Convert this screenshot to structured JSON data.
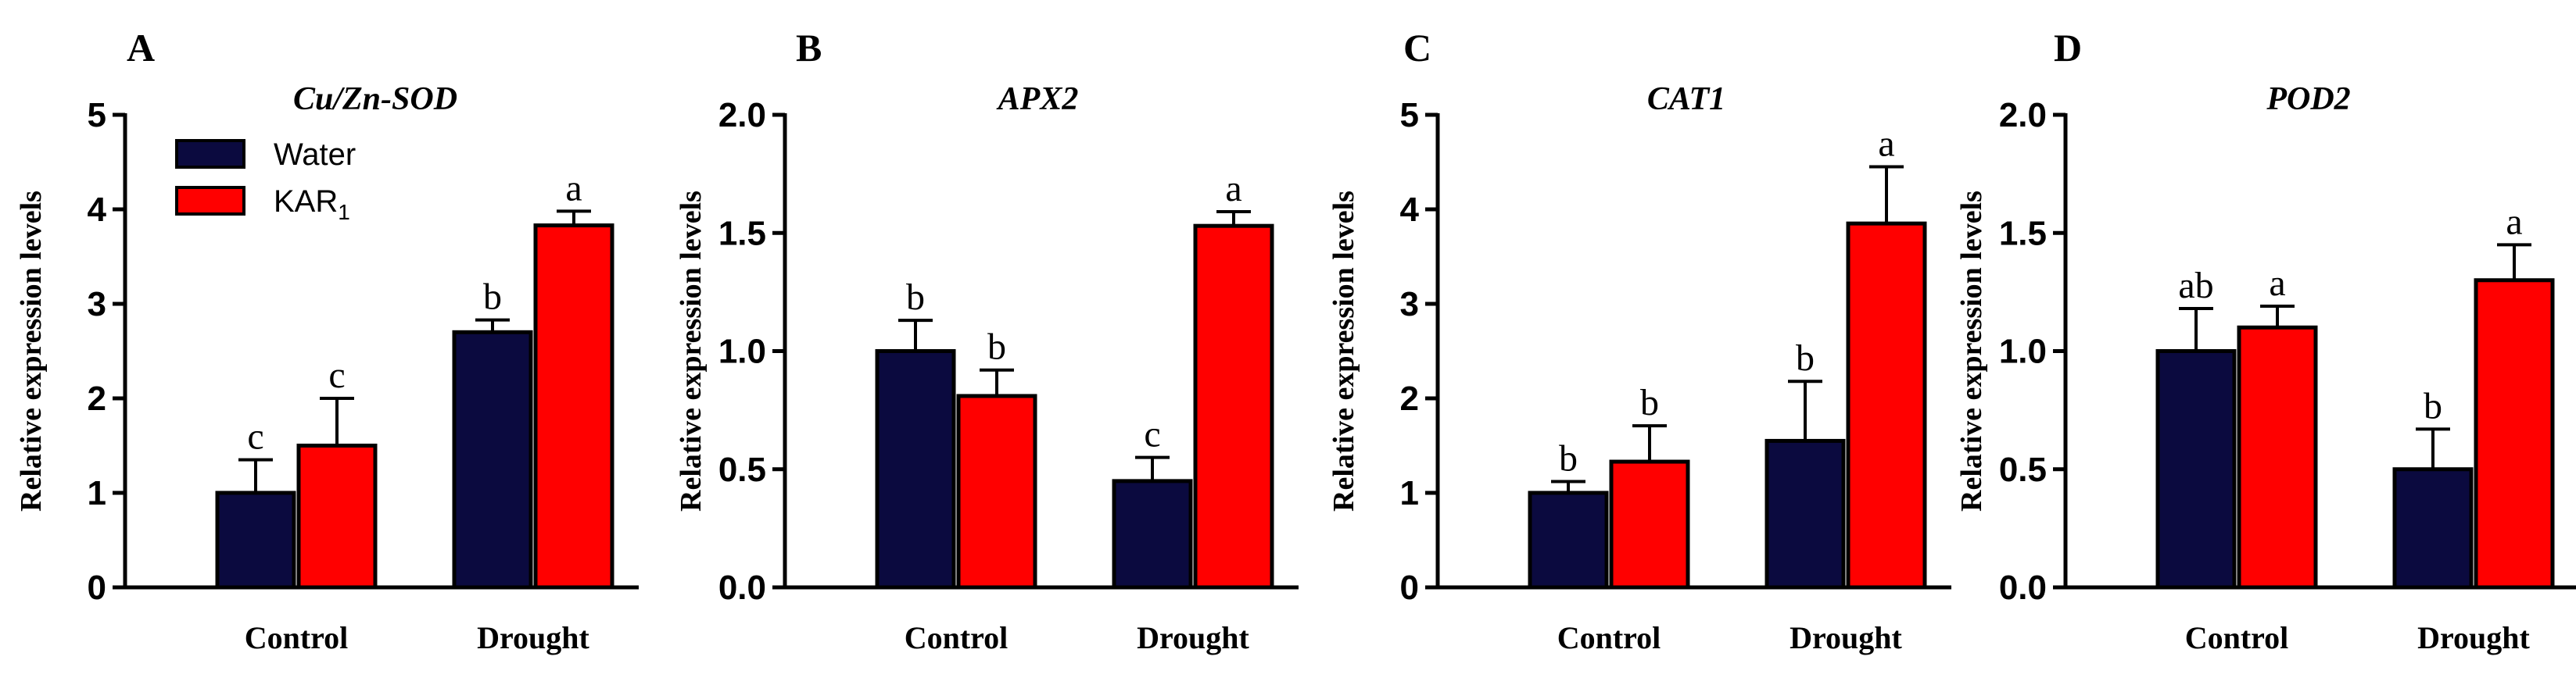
{
  "figure": {
    "legend": [
      {
        "name": "Water",
        "color": "#0b0a3f"
      },
      {
        "name": "KAR",
        "subscript": "1",
        "color": "#ff0000"
      }
    ]
  },
  "chart_data": [
    {
      "type": "bar",
      "panel": "A",
      "title": "Cu/Zn-SOD",
      "ylabel": "Relative expression levels",
      "xlabel": "",
      "categories": [
        "Control",
        "Drought"
      ],
      "ylim": [
        0,
        5
      ],
      "yticks": [
        "0",
        "1",
        "2",
        "3",
        "4",
        "5"
      ],
      "series": [
        {
          "name": "Water",
          "values": [
            1.0,
            2.7
          ],
          "errors": [
            0.35,
            0.13
          ],
          "letters": [
            "c",
            "b"
          ]
        },
        {
          "name": "KAR1",
          "values": [
            1.5,
            3.83
          ],
          "errors": [
            0.5,
            0.15
          ],
          "letters": [
            "c",
            "a"
          ]
        }
      ]
    },
    {
      "type": "bar",
      "panel": "B",
      "title": "APX2",
      "ylabel": "Relative expression levels",
      "xlabel": "",
      "categories": [
        "Control",
        "Drought"
      ],
      "ylim": [
        0,
        2.0
      ],
      "yticks": [
        "0.0",
        "0.5",
        "1.0",
        "1.5",
        "2.0"
      ],
      "series": [
        {
          "name": "Water",
          "values": [
            1.0,
            0.45
          ],
          "errors": [
            0.13,
            0.1
          ],
          "letters": [
            "b",
            "c"
          ]
        },
        {
          "name": "KAR1",
          "values": [
            0.81,
            1.53
          ],
          "errors": [
            0.11,
            0.06
          ],
          "letters": [
            "b",
            "a"
          ]
        }
      ]
    },
    {
      "type": "bar",
      "panel": "C",
      "title": "CAT1",
      "ylabel": "Relative expression levels",
      "xlabel": "",
      "categories": [
        "Control",
        "Drought"
      ],
      "ylim": [
        0,
        5
      ],
      "yticks": [
        "0",
        "1",
        "2",
        "3",
        "4",
        "5"
      ],
      "series": [
        {
          "name": "Water",
          "values": [
            1.0,
            1.55
          ],
          "errors": [
            0.12,
            0.63
          ],
          "letters": [
            "b",
            "b"
          ]
        },
        {
          "name": "KAR1",
          "values": [
            1.33,
            3.85
          ],
          "errors": [
            0.38,
            0.6
          ],
          "letters": [
            "b",
            "a"
          ]
        }
      ]
    },
    {
      "type": "bar",
      "panel": "D",
      "title": "POD2",
      "ylabel": "Relative expression levels",
      "xlabel": "",
      "categories": [
        "Control",
        "Drought"
      ],
      "ylim": [
        0,
        2.0
      ],
      "yticks": [
        "0.0",
        "0.5",
        "1.0",
        "1.5",
        "2.0"
      ],
      "series": [
        {
          "name": "Water",
          "values": [
            1.0,
            0.5
          ],
          "errors": [
            0.18,
            0.17
          ],
          "letters": [
            "ab",
            "b"
          ]
        },
        {
          "name": "KAR1",
          "values": [
            1.1,
            1.3
          ],
          "errors": [
            0.09,
            0.15
          ],
          "letters": [
            "a",
            "a"
          ]
        }
      ]
    }
  ]
}
